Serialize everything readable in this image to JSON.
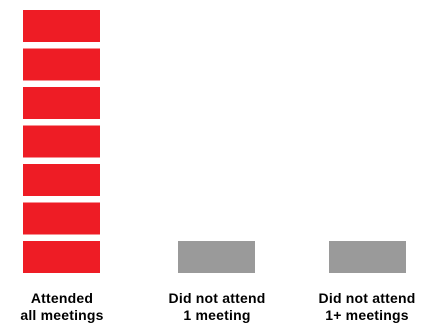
{
  "chart_data": {
    "type": "bar",
    "style": "stacked-unit-blocks",
    "categories": [
      "Attended\nall meetings",
      "Did not attend\n1 meeting",
      "Did not attend\n1+ meetings"
    ],
    "values": [
      7,
      1,
      1
    ],
    "colors": [
      "#ee1c25",
      "#9a9a9a",
      "#9a9a9a"
    ],
    "title": "",
    "xlabel": "",
    "ylabel": "",
    "grid": false,
    "legend": "none"
  }
}
